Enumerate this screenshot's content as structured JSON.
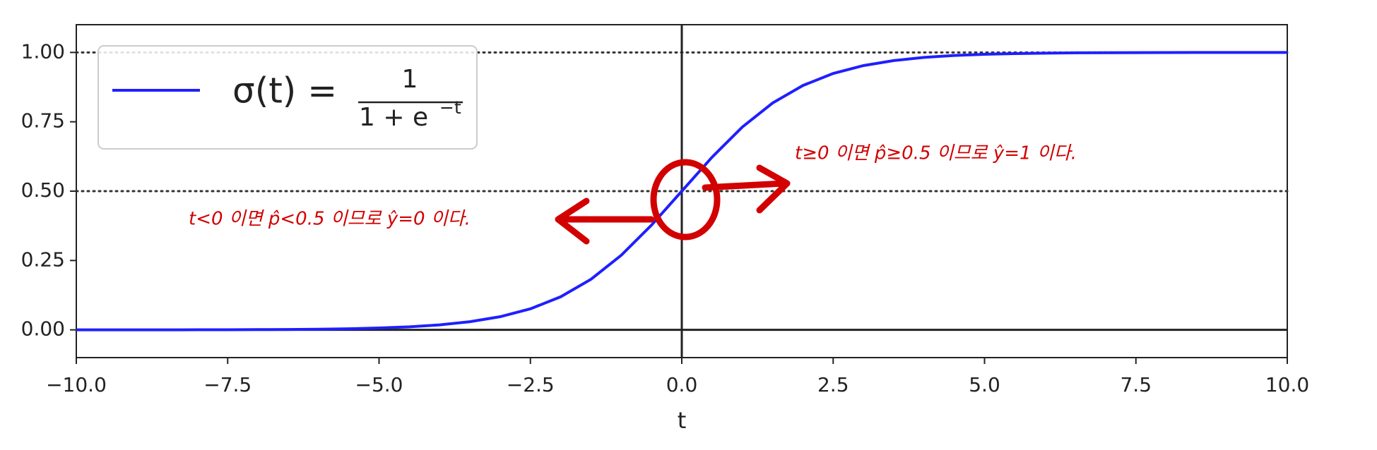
{
  "chart_data": {
    "type": "line",
    "x_label": "t",
    "x": [
      -10,
      -9.5,
      -9,
      -8.5,
      -8,
      -7.5,
      -7,
      -6.5,
      -6,
      -5.5,
      -5,
      -4.5,
      -4,
      -3.5,
      -3,
      -2.5,
      -2,
      -1.5,
      -1,
      -0.5,
      0,
      0.5,
      1,
      1.5,
      2,
      2.5,
      3,
      3.5,
      4,
      4.5,
      5,
      5.5,
      6,
      6.5,
      7,
      7.5,
      8,
      8.5,
      9,
      9.5,
      10
    ],
    "series": [
      {
        "name": {
          "lhs": "σ(t) =",
          "numerator": "1",
          "denominator": "1 + e",
          "exponent": "−t"
        },
        "color": "#1f1fff",
        "values": [
          4.54e-05,
          7.49e-05,
          0.0001234,
          0.0002035,
          0.0003354,
          0.000553,
          0.000911,
          0.001501,
          0.002473,
          0.00407,
          0.006693,
          0.01099,
          0.01799,
          0.02931,
          0.04743,
          0.07586,
          0.1192,
          0.1824,
          0.2689,
          0.3775,
          0.5,
          0.6225,
          0.7311,
          0.8176,
          0.8808,
          0.9241,
          0.9526,
          0.9707,
          0.982,
          0.989,
          0.9933,
          0.9959,
          0.9975,
          0.9985,
          0.9991,
          0.9994,
          0.9997,
          0.9998,
          0.9999,
          0.9999,
          1.0
        ]
      }
    ],
    "xlim": [
      -10,
      10
    ],
    "ylim": [
      -0.1,
      1.1
    ],
    "xticks": [
      {
        "value": -10,
        "label": "−10.0"
      },
      {
        "value": -7.5,
        "label": "−7.5"
      },
      {
        "value": -5,
        "label": "−5.0"
      },
      {
        "value": -2.5,
        "label": "−2.5"
      },
      {
        "value": 0,
        "label": "0.0"
      },
      {
        "value": 2.5,
        "label": "2.5"
      },
      {
        "value": 5,
        "label": "5.0"
      },
      {
        "value": 7.5,
        "label": "7.5"
      },
      {
        "value": 10,
        "label": "10.0"
      }
    ],
    "yticks": [
      {
        "value": 0,
        "label": "0.00"
      },
      {
        "value": 0.25,
        "label": "0.25"
      },
      {
        "value": 0.5,
        "label": "0.50"
      },
      {
        "value": 0.75,
        "label": "0.75"
      },
      {
        "value": 1,
        "label": "1.00"
      }
    ],
    "hlines": [
      {
        "value": 0,
        "style": "solid"
      },
      {
        "value": 0.5,
        "style": "dotted"
      },
      {
        "value": 1,
        "style": "dotted"
      }
    ],
    "vlines": [
      {
        "value": 0,
        "style": "solid"
      }
    ],
    "legend": "upper left",
    "annotations": [
      "t<0 이면 p̂<0.5 이므로 ŷ=0 이다.",
      "t≥0 이면 p̂≥0.5 이므로 ŷ=1 이다."
    ]
  }
}
